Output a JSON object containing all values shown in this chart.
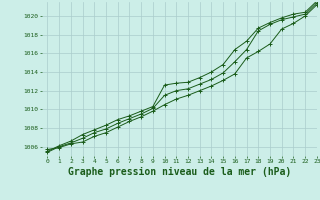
{
  "background_color": "#cceee8",
  "grid_color": "#aacccc",
  "line_color": "#1a5c1a",
  "marker_color": "#1a5c1a",
  "title": "Graphe pression niveau de la mer (hPa)",
  "title_fontsize": 7,
  "xlim": [
    -0.5,
    23
  ],
  "ylim": [
    1005.0,
    1021.5
  ],
  "yticks": [
    1006,
    1008,
    1010,
    1012,
    1014,
    1016,
    1018,
    1020
  ],
  "xticks": [
    0,
    1,
    2,
    3,
    4,
    5,
    6,
    7,
    8,
    9,
    10,
    11,
    12,
    13,
    14,
    15,
    16,
    17,
    18,
    19,
    20,
    21,
    22,
    23
  ],
  "series1": [
    1005.7,
    1005.9,
    1006.3,
    1006.5,
    1007.1,
    1007.5,
    1008.1,
    1008.7,
    1009.2,
    1009.8,
    1010.5,
    1011.1,
    1011.5,
    1012.0,
    1012.5,
    1013.1,
    1013.8,
    1015.5,
    1016.2,
    1017.0,
    1018.6,
    1019.2,
    1020.0,
    1021.2
  ],
  "series2": [
    1005.5,
    1006.1,
    1006.6,
    1007.3,
    1007.8,
    1008.3,
    1008.9,
    1009.3,
    1009.8,
    1010.3,
    1012.6,
    1012.8,
    1012.9,
    1013.4,
    1014.0,
    1014.8,
    1016.4,
    1017.3,
    1018.7,
    1019.3,
    1019.8,
    1020.2,
    1020.4,
    1021.6
  ],
  "series3": [
    1005.4,
    1006.0,
    1006.4,
    1006.9,
    1007.5,
    1007.9,
    1008.5,
    1009.0,
    1009.5,
    1010.1,
    1011.5,
    1012.0,
    1012.2,
    1012.7,
    1013.2,
    1013.9,
    1015.1,
    1016.4,
    1018.4,
    1019.1,
    1019.6,
    1019.9,
    1020.2,
    1021.4
  ]
}
